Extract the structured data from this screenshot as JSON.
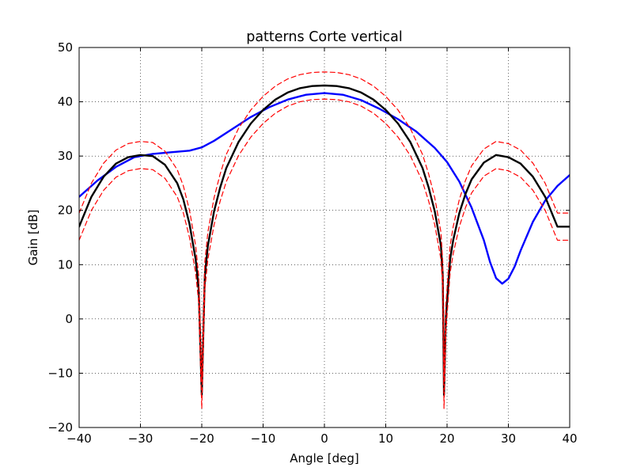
{
  "chart_data": {
    "type": "line",
    "title": "patterns Corte vertical",
    "xlabel": "Angle [deg]",
    "ylabel": "Gain [dB]",
    "xlim": [
      -40,
      40
    ],
    "ylim": [
      -20,
      50
    ],
    "xticks": [
      -40,
      -30,
      -20,
      -10,
      0,
      10,
      20,
      30,
      40
    ],
    "yticks": [
      -20,
      -10,
      0,
      10,
      20,
      30,
      40,
      50
    ],
    "xtick_labels": [
      "−40",
      "−30",
      "−20",
      "−10",
      "0",
      "10",
      "20",
      "30",
      "40"
    ],
    "ytick_labels": [
      "−20",
      "−10",
      "0",
      "10",
      "20",
      "30",
      "40",
      "50"
    ],
    "grid": true,
    "series": [
      {
        "color": "#0000ff",
        "style": "solid",
        "x": [
          -40,
          -37,
          -34,
          -31,
          -28,
          -25,
          -22,
          -20,
          -18,
          -15,
          -12,
          -9,
          -6,
          -3,
          0,
          3,
          6,
          9,
          12,
          15,
          18,
          20,
          22,
          24,
          26,
          27,
          28,
          29,
          30,
          31,
          32,
          34,
          36,
          38,
          40
        ],
        "y": [
          22.5,
          25.5,
          28.0,
          29.8,
          30.4,
          30.7,
          31.0,
          31.6,
          32.8,
          35.0,
          37.2,
          39.0,
          40.4,
          41.3,
          41.6,
          41.3,
          40.3,
          38.7,
          36.8,
          34.5,
          31.5,
          28.9,
          25.3,
          20.5,
          14.5,
          10.5,
          7.5,
          6.5,
          7.4,
          9.6,
          12.6,
          17.9,
          21.8,
          24.5,
          26.5
        ]
      },
      {
        "color": "#000000",
        "style": "solid",
        "x": [
          -40,
          -38,
          -36,
          -34,
          -32,
          -30,
          -28,
          -26,
          -24,
          -23,
          -22,
          -21,
          -20.5,
          -20,
          -19.8,
          -19.5,
          -19,
          -18,
          -17,
          -16,
          -14,
          -12,
          -10,
          -8,
          -6,
          -4,
          -2,
          0,
          2,
          4,
          6,
          8,
          10,
          12,
          14,
          16,
          17,
          18,
          19,
          19.3,
          19.5,
          19.8,
          20.5,
          21,
          22,
          23,
          24,
          26,
          28,
          30,
          32,
          34,
          36,
          38,
          40
        ],
        "y": [
          17.0,
          22.5,
          26.2,
          28.6,
          29.8,
          30.2,
          30.0,
          28.4,
          25.0,
          22.0,
          17.5,
          11.0,
          5.5,
          -14.0,
          -5.0,
          8.0,
          13.5,
          19.8,
          24.2,
          27.8,
          32.6,
          36.0,
          38.5,
          40.4,
          41.7,
          42.5,
          42.9,
          43.0,
          42.9,
          42.5,
          41.7,
          40.4,
          38.5,
          36.0,
          32.6,
          27.8,
          24.2,
          19.8,
          13.5,
          8.0,
          -14.0,
          0.0,
          11.0,
          14.5,
          19.5,
          23.0,
          25.7,
          28.8,
          30.2,
          29.8,
          28.6,
          26.2,
          22.5,
          17.0,
          17.0
        ]
      },
      {
        "color": "#ff0000",
        "style": "dashed",
        "x": [
          -40,
          -38,
          -36,
          -34,
          -32,
          -30,
          -28,
          -26,
          -24,
          -23,
          -22,
          -21,
          -20.5,
          -20,
          -19.8,
          -19.5,
          -19,
          -18,
          -17,
          -16,
          -14,
          -12,
          -10,
          -8,
          -6,
          -4,
          -2,
          0,
          2,
          4,
          6,
          8,
          10,
          12,
          14,
          16,
          17,
          18,
          19,
          19.3,
          19.5,
          19.8,
          20.5,
          21,
          22,
          23,
          24,
          26,
          28,
          30,
          32,
          34,
          36,
          38,
          40
        ],
        "y": [
          19.5,
          25.0,
          28.7,
          31.1,
          32.3,
          32.7,
          32.5,
          30.9,
          27.5,
          24.5,
          20.0,
          13.5,
          8.0,
          -11.5,
          -2.5,
          10.5,
          16.0,
          22.3,
          26.7,
          30.3,
          35.1,
          38.5,
          41.0,
          42.9,
          44.2,
          45.0,
          45.4,
          45.5,
          45.4,
          45.0,
          44.2,
          42.9,
          41.0,
          38.5,
          35.1,
          30.3,
          26.7,
          22.3,
          16.0,
          10.5,
          -11.5,
          2.5,
          13.5,
          17.0,
          22.0,
          25.5,
          28.2,
          31.3,
          32.7,
          32.3,
          31.1,
          28.7,
          25.0,
          19.5,
          19.5
        ]
      },
      {
        "color": "#ff0000",
        "style": "dashed",
        "x": [
          -40,
          -38,
          -36,
          -34,
          -32,
          -30,
          -28,
          -26,
          -24,
          -23,
          -22,
          -21,
          -20.5,
          -20,
          -19.8,
          -19.5,
          -19,
          -18,
          -17,
          -16,
          -14,
          -12,
          -10,
          -8,
          -6,
          -4,
          -2,
          0,
          2,
          4,
          6,
          8,
          10,
          12,
          14,
          16,
          17,
          18,
          19,
          19.3,
          19.5,
          19.8,
          20.5,
          21,
          22,
          23,
          24,
          26,
          28,
          30,
          32,
          34,
          36,
          38,
          40
        ],
        "y": [
          14.5,
          20.0,
          23.7,
          26.1,
          27.3,
          27.7,
          27.5,
          25.9,
          22.5,
          19.5,
          15.0,
          8.5,
          3.0,
          -16.5,
          -7.5,
          5.5,
          11.0,
          17.3,
          21.7,
          25.3,
          30.1,
          33.5,
          36.0,
          37.9,
          39.2,
          40.0,
          40.4,
          40.5,
          40.4,
          40.0,
          39.2,
          37.9,
          36.0,
          33.5,
          30.1,
          25.3,
          21.7,
          17.3,
          11.0,
          5.5,
          -16.5,
          -2.5,
          8.5,
          12.0,
          17.0,
          20.5,
          23.2,
          26.3,
          27.7,
          27.3,
          26.1,
          23.7,
          20.0,
          14.5,
          14.5
        ]
      }
    ]
  }
}
